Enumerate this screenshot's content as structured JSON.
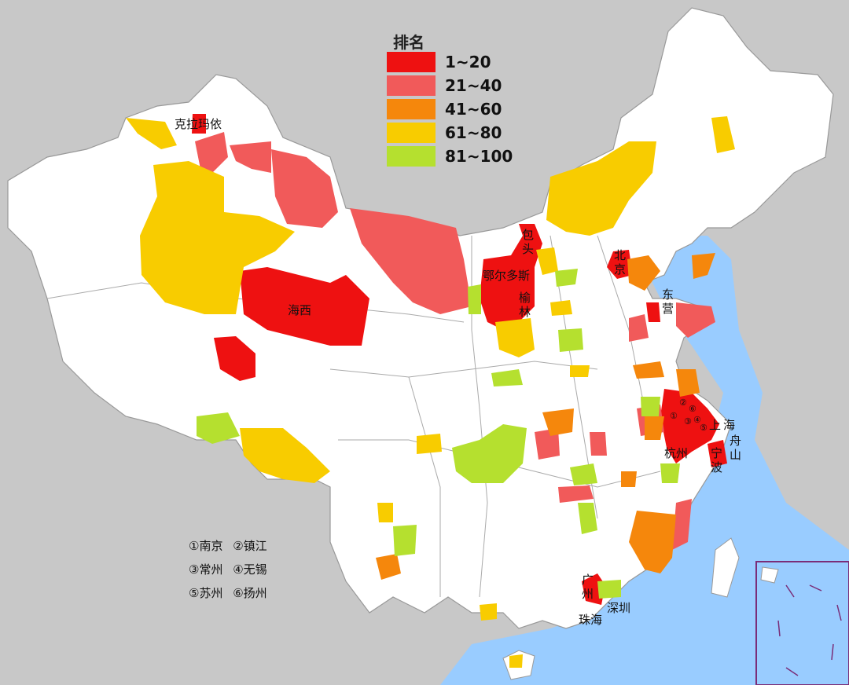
{
  "legend": {
    "title": "排名",
    "items": [
      {
        "range": "1~20",
        "color": "#ee1111"
      },
      {
        "range": "21~40",
        "color": "#f15a5a"
      },
      {
        "range": "41~60",
        "color": "#f5870c"
      },
      {
        "range": "61~80",
        "color": "#f8cc00"
      },
      {
        "range": "81~100",
        "color": "#b5e02f"
      }
    ]
  },
  "labels": {
    "kelamayi": "克拉玛依",
    "haixi": "海西",
    "baotou_1": "包",
    "baotou_2": "头",
    "ordos": "鄂尔多斯",
    "yulin_1": "榆",
    "yulin_2": "林",
    "beijing_1": "北",
    "beijing_2": "京",
    "dongying_1": "东",
    "dongying_2": "营",
    "shanghai_1": "上",
    "shanghai_2": "海",
    "zhoushan_1": "舟",
    "zhoushan_2": "山",
    "hangzhou": "杭州",
    "ningbo_1": "宁",
    "ningbo_2": "波",
    "guangzhou_1": "广",
    "guangzhou_2": "州",
    "shenzhen": "深圳",
    "zhuhai": "珠海",
    "circ_1": "①",
    "circ_2": "②",
    "circ_3": "③",
    "circ_4": "④",
    "circ_5": "⑤",
    "circ_6": "⑥"
  },
  "notes": [
    [
      "①南京",
      "②镇江"
    ],
    [
      "③常州",
      "④无锡"
    ],
    [
      "⑤苏州",
      "⑥扬州"
    ]
  ],
  "colors": {
    "land": "#ffffff",
    "sea": "#99ccff",
    "background": "#c8c8c8",
    "border": "#8a8a8a"
  }
}
